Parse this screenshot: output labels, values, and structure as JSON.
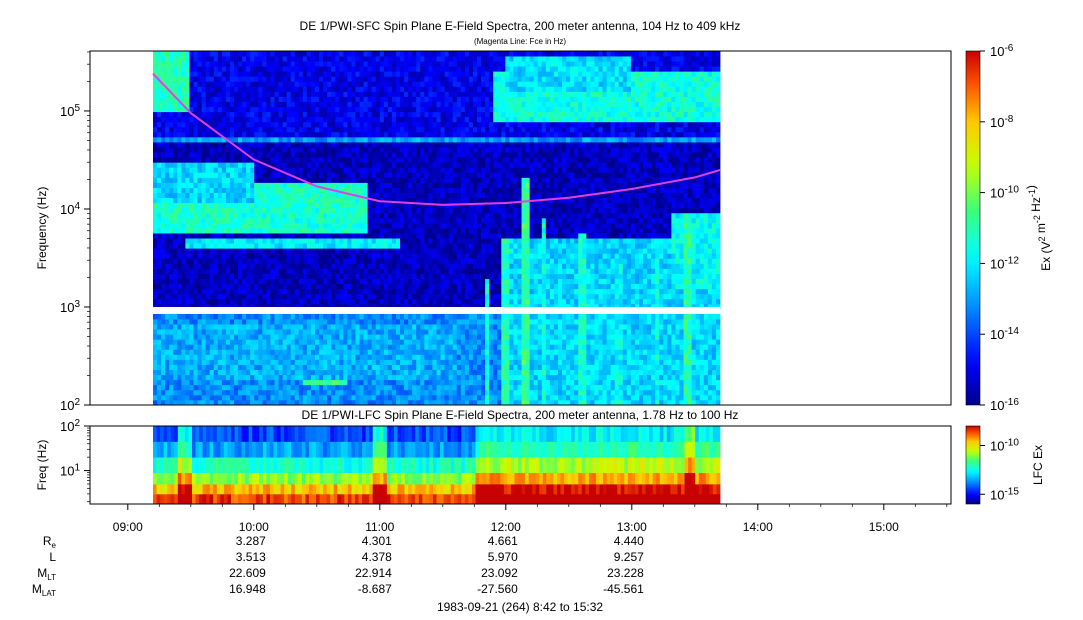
{
  "chart_data": [
    {
      "type": "heatmap",
      "title": "DE 1/PWI-SFC  Spin Plane E-Field Spectra, 200 meter antenna, 104 Hz to 409 kHz",
      "subtitle": "(Magenta Line: Fce in Hz)",
      "ylabel": "Frequency (Hz)",
      "yscale": "log",
      "ylim": [
        100,
        409000
      ],
      "yticks": [
        {
          "value": 100,
          "base": "10",
          "exp": "2"
        },
        {
          "value": 1000,
          "base": "10",
          "exp": "3"
        },
        {
          "value": 10000,
          "base": "10",
          "exp": "4"
        },
        {
          "value": 100000,
          "base": "10",
          "exp": "5"
        }
      ],
      "xlim": [
        "08:42",
        "15:32"
      ],
      "data_time_range": [
        "09:12",
        "13:42"
      ],
      "colorbar": {
        "label_parts": [
          {
            "text": "Ex (V"
          },
          {
            "text": "2",
            "sup": true
          },
          {
            "text": " m"
          },
          {
            "text": "-2",
            "sup": true
          },
          {
            "text": " Hz"
          },
          {
            "text": "-1",
            "sup": true
          },
          {
            "text": ")"
          }
        ],
        "scale": "log",
        "range": [
          1e-16,
          1e-06
        ],
        "ticks": [
          {
            "value": 1e-06,
            "base": "10",
            "exp": "-6"
          },
          {
            "value": 1e-08,
            "base": "10",
            "exp": "-8"
          },
          {
            "value": 1e-10,
            "base": "10",
            "exp": "-10"
          },
          {
            "value": 1e-12,
            "base": "10",
            "exp": "-12"
          },
          {
            "value": 1e-14,
            "base": "10",
            "exp": "-14"
          },
          {
            "value": 1e-16,
            "base": "10",
            "exp": "-16"
          }
        ]
      },
      "overlay_line": {
        "name": "Fce in Hz",
        "color": "#e040e0",
        "time_hours": [
          9.2,
          9.5,
          10.0,
          10.5,
          11.0,
          11.5,
          12.0,
          12.5,
          13.0,
          13.5,
          13.7
        ],
        "fce_hz": [
          240000,
          95000,
          32000,
          17000,
          12000,
          11000,
          11500,
          13000,
          16000,
          21000,
          25000
        ]
      },
      "regions": [
        {
          "t": [
            9.2,
            13.7
          ],
          "f": [
            100,
            409000
          ],
          "level": -14.0
        },
        {
          "t": [
            9.2,
            13.7
          ],
          "f": [
            1000,
            55000
          ],
          "level": -15.5
        },
        {
          "t": [
            9.2,
            13.7
          ],
          "f": [
            55000,
            409000
          ],
          "level": -15.0
        },
        {
          "t": [
            9.2,
            13.7
          ],
          "f": [
            100,
            900
          ],
          "level": -13.2
        },
        {
          "t": [
            9.2,
            10.9
          ],
          "f": [
            6000,
            18000
          ],
          "level": -11.3
        },
        {
          "t": [
            9.2,
            10.0
          ],
          "f": [
            12000,
            30000
          ],
          "level": -12.3
        },
        {
          "t": [
            9.45,
            11.15
          ],
          "f": [
            3800,
            5200
          ],
          "level": -12.0
        },
        {
          "t": [
            9.2,
            9.5
          ],
          "f": [
            100000,
            409000
          ],
          "level": -11.2
        },
        {
          "t": [
            11.9,
            13.7
          ],
          "f": [
            80000,
            250000
          ],
          "level": -11.5
        },
        {
          "t": [
            12.0,
            13.0
          ],
          "f": [
            150000,
            380000
          ],
          "level": -12.2
        },
        {
          "t": [
            12.0,
            13.7
          ],
          "f": [
            100,
            5000
          ],
          "level": -12.3
        },
        {
          "t": [
            13.3,
            13.7
          ],
          "f": [
            1500,
            9000
          ],
          "level": -11.8
        },
        {
          "t": [
            10.4,
            10.75
          ],
          "f": [
            170,
            310
          ],
          "level": -10.5
        },
        {
          "t": [
            9.2,
            11.6
          ],
          "f": [
            180,
            700
          ],
          "level": -12.8
        },
        {
          "t": [
            9.2,
            13.7
          ],
          "f": [
            46000,
            55000
          ],
          "level": -13.0
        }
      ],
      "streaks": [
        {
          "t": 11.85,
          "f": [
            100,
            2000
          ],
          "level": -11.5
        },
        {
          "t": 12.0,
          "f": [
            100,
            5000
          ],
          "level": -11.2
        },
        {
          "t": 12.15,
          "f": [
            100,
            20000
          ],
          "level": -10.8
        },
        {
          "t": 12.3,
          "f": [
            100,
            8000
          ],
          "level": -11.6
        },
        {
          "t": 12.6,
          "f": [
            100,
            6000
          ],
          "level": -11.4
        },
        {
          "t": 12.9,
          "f": [
            100,
            3000
          ],
          "level": -11.8
        },
        {
          "t": 13.2,
          "f": [
            100,
            4000
          ],
          "level": -11.6
        },
        {
          "t": 13.45,
          "f": [
            100,
            9000
          ],
          "level": -11.0
        }
      ],
      "gap": {
        "f": [
          900,
          1000
        ]
      }
    },
    {
      "type": "heatmap",
      "title": "DE 1/PWI-LFC  Spin Plane E-Field Spectra, 200 meter antenna, 1.78 Hz to 100 Hz",
      "ylabel": "Freq (Hz)",
      "yscale": "log",
      "ylim": [
        1.78,
        100
      ],
      "yticks": [
        {
          "value": 10,
          "base": "10",
          "exp": "1"
        },
        {
          "value": 100,
          "base": "10",
          "exp": "2"
        }
      ],
      "xlim": [
        "08:42",
        "15:32"
      ],
      "xticks": [
        "09:00",
        "10:00",
        "11:00",
        "12:00",
        "13:00",
        "14:00",
        "15:00"
      ],
      "colorbar": {
        "label": "LFC Ex",
        "scale": "log",
        "range": [
          1e-16,
          1e-08
        ],
        "ticks": [
          {
            "value": 1e-10,
            "base": "10",
            "exp": "-10"
          },
          {
            "value": 1e-15,
            "base": "10",
            "exp": "-15"
          }
        ]
      },
      "rows": [
        {
          "f": [
            1.78,
            3
          ],
          "level": -8.6
        },
        {
          "f": [
            3,
            5
          ],
          "level": -9.6
        },
        {
          "f": [
            5,
            9
          ],
          "level": -11.0
        },
        {
          "f": [
            9,
            20
          ],
          "level": -12.3
        },
        {
          "f": [
            20,
            45
          ],
          "level": -13.6
        },
        {
          "f": [
            45,
            100
          ],
          "level": -14.4
        }
      ],
      "active_interval": {
        "t": [
          11.75,
          13.7
        ],
        "boost": 1.6
      }
    }
  ],
  "ephemeris": {
    "rows": [
      {
        "label": "R",
        "sub": "e",
        "values": [
          "3.287",
          "4.301",
          "4.661",
          "4.440"
        ]
      },
      {
        "label": "L",
        "sub": "",
        "values": [
          "3.513",
          "4.378",
          "5.970",
          "9.257"
        ]
      },
      {
        "label": "M",
        "sub": "LT",
        "values": [
          "22.609",
          "22.914",
          "23.092",
          "23.228"
        ]
      },
      {
        "label": "M",
        "sub": "LAT",
        "values": [
          "16.948",
          "-8.687",
          "-27.560",
          "-45.561"
        ]
      }
    ],
    "times": [
      "10:00",
      "11:00",
      "12:00",
      "13:00"
    ]
  },
  "footer": "1983-09-21 (264) 8:42 to 15:32"
}
